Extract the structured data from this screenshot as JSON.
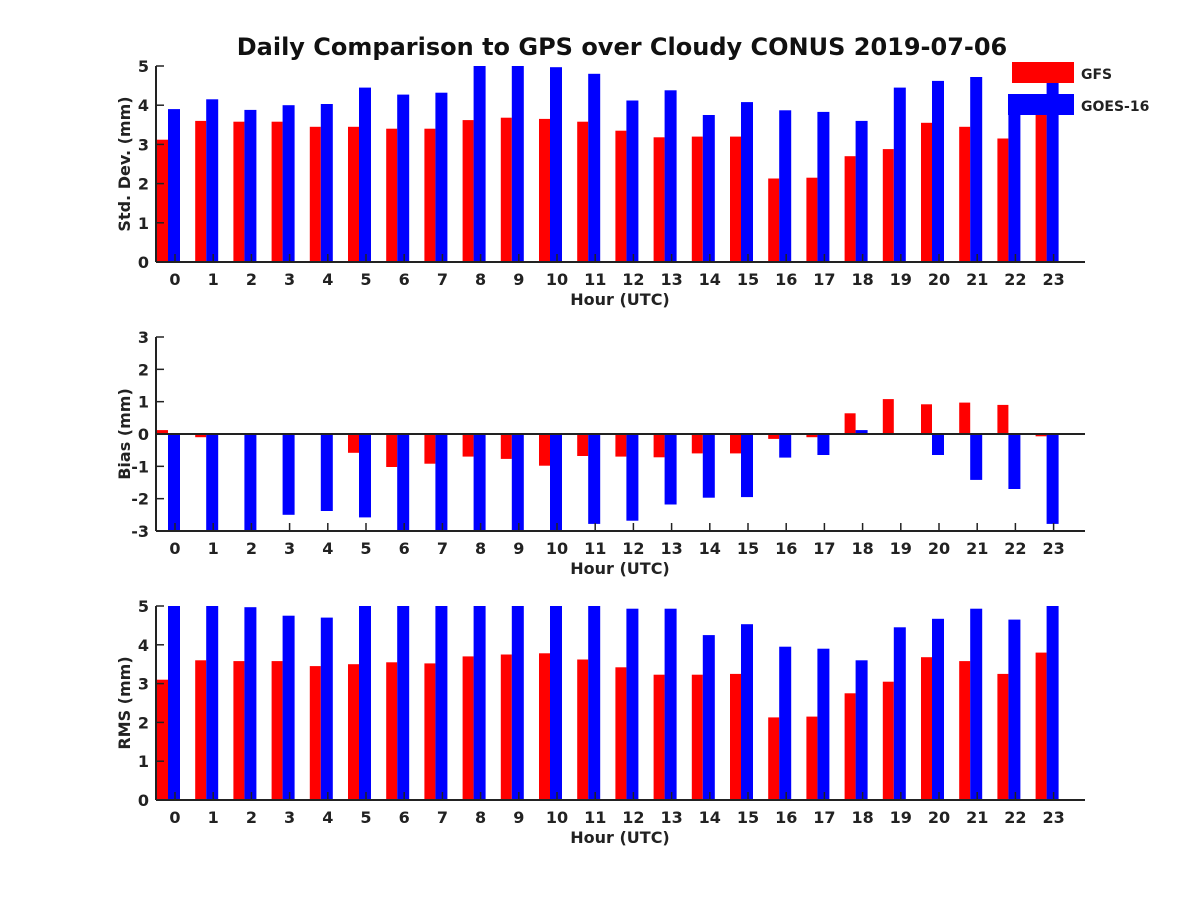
{
  "title": "Daily Comparison to GPS over Cloudy CONUS 2019-07-06",
  "colors": {
    "GFS": "#ff0000",
    "GOES-16": "#0000ff",
    "axis": "#222222"
  },
  "legend": {
    "placement": "top-right",
    "entries": [
      "GFS",
      "GOES-16"
    ]
  },
  "chart_data": [
    {
      "type": "bar",
      "ylabel": "Std. Dev. (mm)",
      "xlabel": "Hour (UTC)",
      "ylim": [
        0,
        5
      ],
      "yticks": [
        0,
        1,
        2,
        3,
        4,
        5
      ],
      "categories": [
        "0",
        "1",
        "2",
        "3",
        "4",
        "5",
        "6",
        "7",
        "8",
        "9",
        "10",
        "11",
        "12",
        "13",
        "14",
        "15",
        "16",
        "17",
        "18",
        "19",
        "20",
        "21",
        "22",
        "23"
      ],
      "zero_line": false,
      "series": [
        {
          "name": "GFS",
          "values": [
            3.12,
            3.6,
            3.58,
            3.58,
            3.45,
            3.45,
            3.4,
            3.4,
            3.62,
            3.68,
            3.65,
            3.58,
            3.35,
            3.18,
            3.2,
            3.2,
            2.13,
            2.15,
            2.7,
            2.88,
            3.55,
            3.45,
            3.15,
            3.85
          ]
        },
        {
          "name": "GOES-16",
          "values": [
            3.9,
            4.15,
            3.88,
            4.0,
            4.03,
            4.45,
            4.27,
            4.32,
            5.0,
            5.0,
            4.97,
            4.8,
            4.12,
            4.38,
            3.75,
            4.08,
            3.87,
            3.83,
            3.6,
            4.45,
            4.62,
            4.72,
            3.93,
            4.6
          ]
        }
      ]
    },
    {
      "type": "bar",
      "ylabel": "Bias (mm)",
      "xlabel": "Hour (UTC)",
      "ylim": [
        -3,
        3
      ],
      "yticks": [
        -3,
        -2,
        -1,
        0,
        1,
        2,
        3
      ],
      "categories": [
        "0",
        "1",
        "2",
        "3",
        "4",
        "5",
        "6",
        "7",
        "8",
        "9",
        "10",
        "11",
        "12",
        "13",
        "14",
        "15",
        "16",
        "17",
        "18",
        "19",
        "20",
        "21",
        "22",
        "23"
      ],
      "zero_line": true,
      "series": [
        {
          "name": "GFS",
          "values": [
            0.12,
            -0.1,
            0.02,
            0.02,
            0.02,
            -0.58,
            -1.02,
            -0.92,
            -0.7,
            -0.77,
            -0.98,
            -0.68,
            -0.7,
            -0.72,
            -0.6,
            -0.6,
            -0.15,
            -0.1,
            0.64,
            1.08,
            0.92,
            0.97,
            0.9,
            -0.07
          ]
        },
        {
          "name": "GOES-16",
          "values": [
            -3.0,
            -3.0,
            -3.0,
            -2.5,
            -2.38,
            -2.58,
            -3.0,
            -3.0,
            -3.0,
            -3.0,
            -3.0,
            -2.78,
            -2.68,
            -2.18,
            -1.97,
            -1.95,
            -0.73,
            -0.65,
            0.12,
            0.0,
            -0.65,
            -1.42,
            -1.7,
            -2.78
          ]
        }
      ]
    },
    {
      "type": "bar",
      "ylabel": "RMS (mm)",
      "xlabel": "Hour (UTC)",
      "ylim": [
        0,
        5
      ],
      "yticks": [
        0,
        1,
        2,
        3,
        4,
        5
      ],
      "categories": [
        "0",
        "1",
        "2",
        "3",
        "4",
        "5",
        "6",
        "7",
        "8",
        "9",
        "10",
        "11",
        "12",
        "13",
        "14",
        "15",
        "16",
        "17",
        "18",
        "19",
        "20",
        "21",
        "22",
        "23"
      ],
      "zero_line": false,
      "series": [
        {
          "name": "GFS",
          "values": [
            3.1,
            3.6,
            3.58,
            3.58,
            3.45,
            3.5,
            3.55,
            3.52,
            3.7,
            3.75,
            3.78,
            3.62,
            3.42,
            3.23,
            3.23,
            3.25,
            2.13,
            2.15,
            2.75,
            3.05,
            3.68,
            3.58,
            3.25,
            3.8
          ]
        },
        {
          "name": "GOES-16",
          "values": [
            5.0,
            5.0,
            4.97,
            4.75,
            4.7,
            5.0,
            5.0,
            5.0,
            5.0,
            5.0,
            5.0,
            5.0,
            4.93,
            4.93,
            4.25,
            4.53,
            3.95,
            3.9,
            3.6,
            4.45,
            4.67,
            4.93,
            4.65,
            5.0
          ]
        }
      ]
    }
  ]
}
